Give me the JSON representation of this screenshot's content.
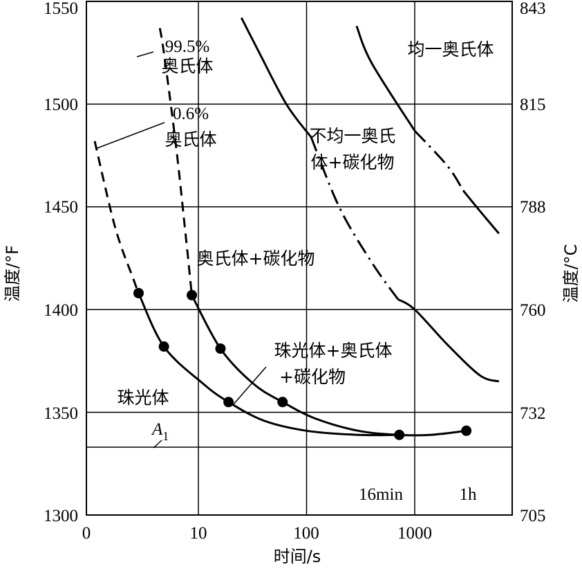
{
  "chart_data": {
    "type": "line",
    "title": "",
    "xlabel": "时间/s",
    "ylabel": "温度/°F",
    "ylabel_right": "温度/°C",
    "x_scale": "log",
    "xlim": [
      1,
      6000
    ],
    "ylim": [
      1300,
      1550
    ],
    "x_ticks": [
      "0",
      "10",
      "100",
      "1000"
    ],
    "y_ticks_left": [
      "1300",
      "1350",
      "1400",
      "1450",
      "1500",
      "1550"
    ],
    "y_ticks_right": [
      "705",
      "732",
      "760",
      "788",
      "815",
      "843"
    ],
    "grid": true,
    "A1": {
      "label": "A",
      "subscript": "1",
      "value": 1333
    },
    "time_marks": [
      "16min",
      "1h"
    ],
    "series": [
      {
        "name": "0.6%",
        "dashed_points": [
          [
            1.1,
            1482
          ],
          [
            1.7,
            1440
          ],
          [
            2.5,
            1415
          ]
        ],
        "points": [
          [
            2.8,
            1408
          ],
          [
            4.8,
            1382
          ],
          [
            11,
            1364
          ],
          [
            19,
            1355
          ],
          [
            40,
            1346
          ],
          [
            100,
            1341
          ],
          [
            300,
            1339
          ],
          [
            720,
            1339
          ]
        ],
        "markers": [
          [
            2.8,
            1408
          ],
          [
            4.8,
            1382
          ],
          [
            19,
            1355
          ]
        ]
      },
      {
        "name": "99.5%",
        "dashed_points": [
          [
            4.4,
            1537
          ],
          [
            4.8,
            1525
          ],
          [
            6.2,
            1480
          ],
          [
            7.5,
            1440
          ],
          [
            8.4,
            1415
          ]
        ],
        "points": [
          [
            8.7,
            1407
          ],
          [
            16,
            1381
          ],
          [
            32,
            1364
          ],
          [
            60,
            1355
          ],
          [
            120,
            1347
          ],
          [
            300,
            1341
          ],
          [
            720,
            1339
          ],
          [
            1400,
            1339
          ],
          [
            3000,
            1341
          ]
        ],
        "markers": [
          [
            8.7,
            1407
          ],
          [
            16,
            1381
          ],
          [
            60,
            1355
          ],
          [
            720,
            1339
          ],
          [
            3000,
            1341
          ]
        ]
      },
      {
        "name": "",
        "segments": [
          {
            "style": "solid",
            "points": [
              [
                25,
                1542
              ],
              [
                35,
                1527
              ],
              [
                65,
                1500
              ],
              [
                110,
                1484
              ]
            ]
          },
          {
            "style": "dash-dot",
            "points": [
              [
                110,
                1484
              ],
              [
                200,
                1450
              ],
              [
                400,
                1423
              ],
              [
                700,
                1405
              ]
            ]
          },
          {
            "style": "solid",
            "points": [
              [
                700,
                1405
              ],
              [
                1000,
                1400
              ],
              [
                2000,
                1383
              ],
              [
                4000,
                1368
              ],
              [
                6000,
                1365
              ]
            ]
          }
        ]
      },
      {
        "name": "",
        "segments": [
          {
            "style": "solid",
            "points": [
              [
                290,
                1538
              ],
              [
                400,
                1520
              ],
              [
                1000,
                1487
              ]
            ]
          },
          {
            "style": "dash-dot",
            "points": [
              [
                1000,
                1487
              ],
              [
                2000,
                1470
              ],
              [
                2800,
                1458
              ]
            ]
          },
          {
            "style": "solid",
            "points": [
              [
                2800,
                1458
              ],
              [
                4000,
                1448
              ],
              [
                6000,
                1437
              ]
            ]
          }
        ]
      }
    ],
    "annotations": [
      {
        "text": "99.5%",
        "line2": "奥氏体"
      },
      {
        "text": "0.6%",
        "line2": "奥氏体"
      },
      {
        "text": "均一奥氏体"
      },
      {
        "text": "不均一奥氏",
        "line2": "体+碳化物"
      },
      {
        "text": "奥氏体+碳化物"
      },
      {
        "text": "珠光体+奥氏体",
        "line2": "+碳化物"
      },
      {
        "text": "珠光体"
      }
    ]
  }
}
